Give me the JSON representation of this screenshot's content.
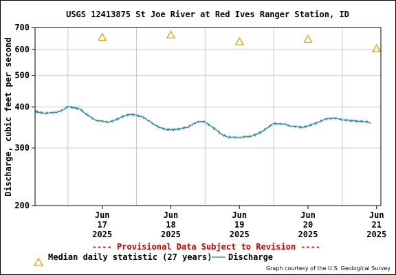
{
  "title": "USGS 12413875 St Joe River at Red Ives Ranger Station, ID",
  "provisional_notice": "---- Provisional Data Subject to Revision ----",
  "credit": "Graph courtesy of the U.S. Geological Survey",
  "colors": {
    "discharge": "#1a7fa0",
    "median": "#e6a000",
    "provisional": "#cc0000",
    "grid": "#c8c8c8",
    "axis": "#000000"
  },
  "chart_data": {
    "type": "line",
    "title": "USGS 12413875 St Joe River at Red Ives Ranger Station, ID",
    "xlabel": "",
    "ylabel": "Discharge, cubic feet per second",
    "y_scale": "log",
    "ylim": [
      200,
      700
    ],
    "y_ticks": [
      200,
      300,
      400,
      500,
      600,
      700
    ],
    "x_ticks": [
      {
        "day": 17,
        "lines": [
          "Jun",
          "17",
          "2025"
        ]
      },
      {
        "day": 18,
        "lines": [
          "Jun",
          "18",
          "2025"
        ]
      },
      {
        "day": 19,
        "lines": [
          "Jun",
          "19",
          "2025"
        ]
      },
      {
        "day": 20,
        "lines": [
          "Jun",
          "20",
          "2025"
        ]
      },
      {
        "day": 21,
        "lines": [
          "Jun",
          "21",
          "2025"
        ]
      }
    ],
    "xlim": [
      "2025-06-16T12:30",
      "2025-06-21T13:30"
    ],
    "grid": true,
    "legend_position": "bottom",
    "series": [
      {
        "name": "Median daily statistic (27 years)",
        "marker": "triangle",
        "x": [
          "2025-06-17T00:00",
          "2025-06-18T00:00",
          "2025-06-19T00:00",
          "2025-06-20T00:00",
          "2025-06-21T00:00"
        ],
        "values": [
          652,
          663,
          632,
          643,
          602
        ]
      },
      {
        "name": "Discharge",
        "marker": "line",
        "x": [
          "2025-06-16T12:30",
          "2025-06-16T14:00",
          "2025-06-16T16:00",
          "2025-06-16T18:00",
          "2025-06-16T20:00",
          "2025-06-16T22:00",
          "2025-06-17T00:00",
          "2025-06-17T02:00",
          "2025-06-17T04:00",
          "2025-06-17T06:00",
          "2025-06-17T08:00",
          "2025-06-17T10:00",
          "2025-06-17T12:00",
          "2025-06-17T14:00",
          "2025-06-17T16:00",
          "2025-06-17T18:00",
          "2025-06-17T20:00",
          "2025-06-17T22:00",
          "2025-06-18T00:00",
          "2025-06-18T02:00",
          "2025-06-18T04:00",
          "2025-06-18T06:00",
          "2025-06-18T08:00",
          "2025-06-18T10:00",
          "2025-06-18T12:00",
          "2025-06-18T14:00",
          "2025-06-18T16:00",
          "2025-06-18T18:00",
          "2025-06-18T20:00",
          "2025-06-18T22:00",
          "2025-06-19T00:00",
          "2025-06-19T02:00",
          "2025-06-19T04:00",
          "2025-06-19T06:00",
          "2025-06-19T08:00",
          "2025-06-19T10:00",
          "2025-06-19T12:00",
          "2025-06-19T14:00",
          "2025-06-19T16:00",
          "2025-06-19T18:00",
          "2025-06-19T20:00",
          "2025-06-19T22:00",
          "2025-06-20T00:00",
          "2025-06-20T02:00",
          "2025-06-20T04:00",
          "2025-06-20T06:00",
          "2025-06-20T08:00",
          "2025-06-20T10:00",
          "2025-06-20T12:00",
          "2025-06-20T14:00",
          "2025-06-20T16:00",
          "2025-06-20T18:00",
          "2025-06-20T20:00",
          "2025-06-20T22:00",
          "2025-06-21T00:00",
          "2025-06-21T02:00",
          "2025-06-21T04:00",
          "2025-06-21T06:00",
          "2025-06-21T08:00",
          "2025-06-21T10:00"
        ],
        "values": [
          388,
          385,
          383,
          384,
          386,
          390,
          402,
          398,
          395,
          383,
          372,
          364,
          362,
          360,
          363,
          370,
          377,
          380,
          378,
          373,
          365,
          354,
          347,
          342,
          341,
          342,
          344,
          348,
          355,
          362,
          360,
          350,
          340,
          329,
          324,
          323,
          323,
          324,
          326,
          330,
          337,
          347,
          356,
          356,
          354,
          350,
          348,
          347,
          350,
          355,
          361,
          367,
          370,
          369,
          366,
          364,
          363,
          362,
          361,
          358
        ]
      }
    ]
  }
}
